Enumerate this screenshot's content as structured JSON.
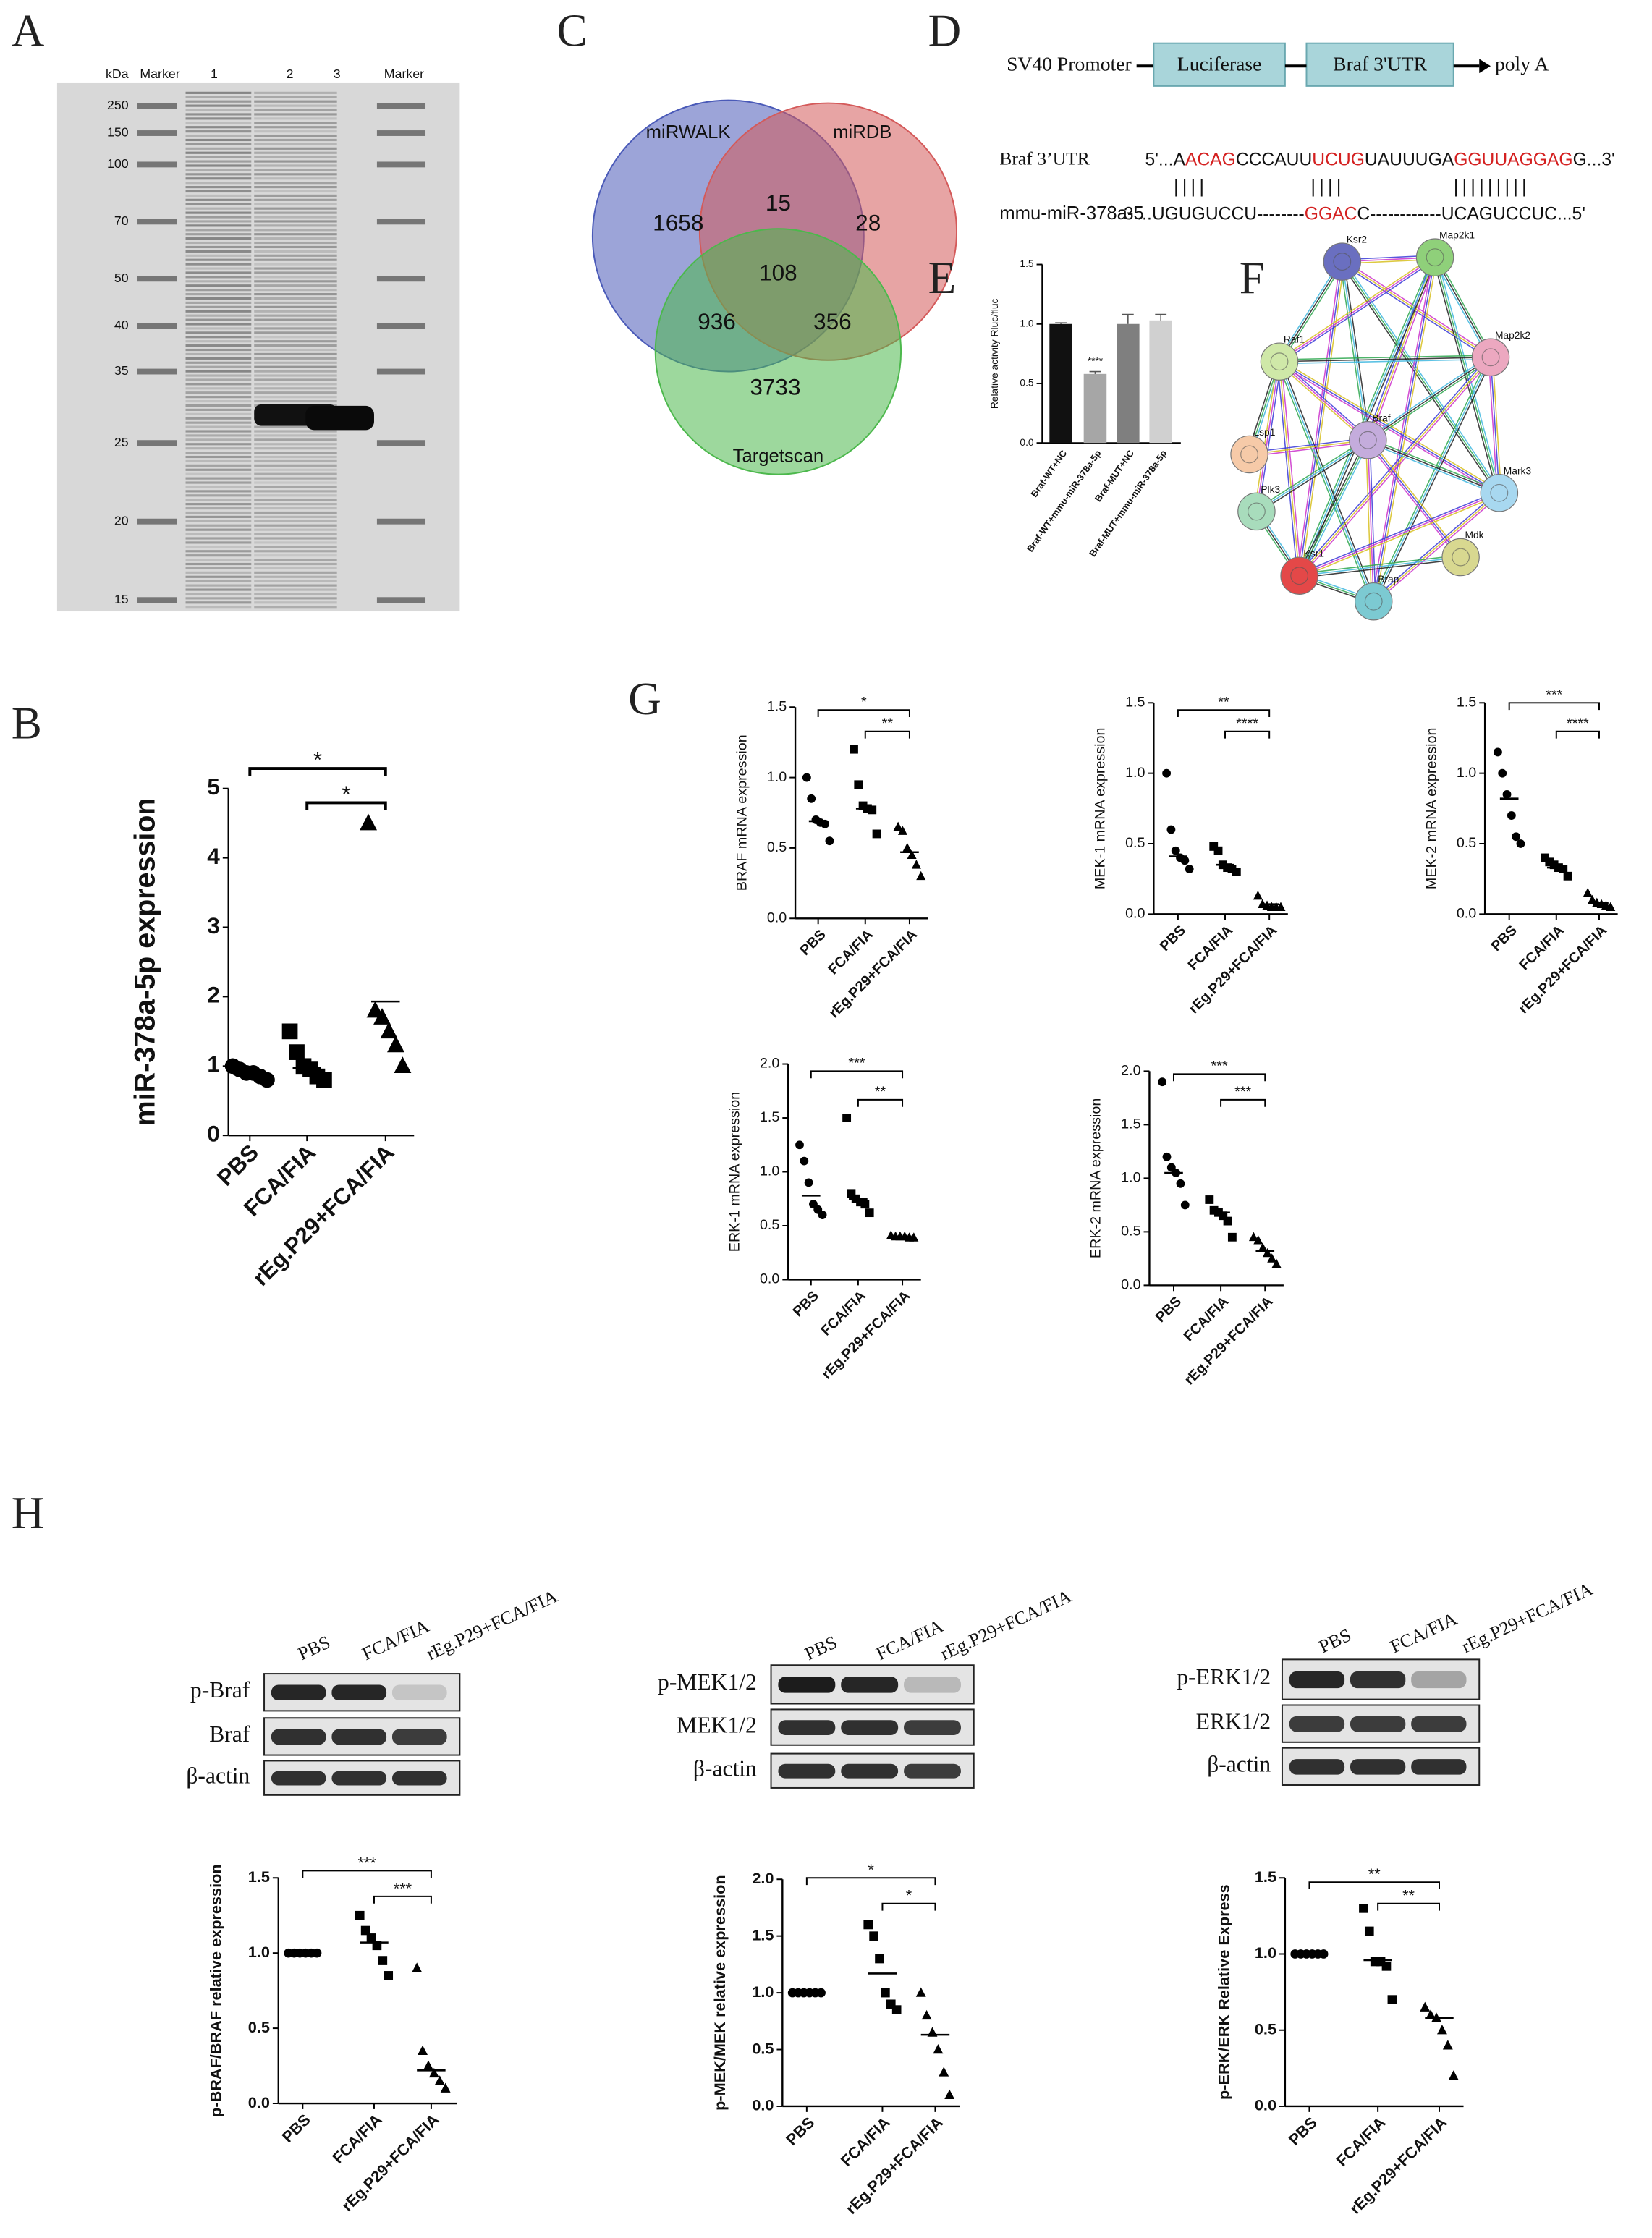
{
  "gel": {
    "label": "A",
    "lane_labels": [
      "kDa",
      "Marker",
      "1",
      "2",
      "3",
      "Marker"
    ],
    "ladder": [
      "250",
      "150",
      "100",
      "70",
      "50",
      "40",
      "35",
      "25",
      "20",
      "15"
    ]
  },
  "construct": {
    "label": "D",
    "promoter": "SV40 Promoter",
    "boxes": [
      "Luciferase",
      "Braf 3'UTR"
    ],
    "end": "poly A",
    "alignment": [
      {
        "name": "Braf 3’UTR",
        "segments": [
          {
            "text": "5'...A"
          },
          {
            "text": "ACAG",
            "highlight": true
          },
          {
            "text": "CCCAUU"
          },
          {
            "text": "UCUG",
            "highlight": true
          },
          {
            "text": "UAUUUGA"
          },
          {
            "text": "GGUUAGGAG",
            "highlight": true
          },
          {
            "text": "G...3'"
          }
        ]
      },
      {
        "name": "mmu-miR-378a-5",
        "segments": [
          {
            "text": "3'...UGUGUCCU--------"
          },
          {
            "text": "GGAC",
            "highlight": true
          },
          {
            "text": "C------------UCAGUCCUC...5'"
          }
        ]
      }
    ],
    "pairing": [
      "||||",
      "||||",
      "|||||||||"
    ]
  },
  "network": {
    "label": "F",
    "nodes": [
      {
        "label": "Ksr2",
        "color": "#6a6fc0"
      },
      {
        "label": "Map2k1",
        "color": "#8fd07a"
      },
      {
        "label": "Raf1",
        "color": "#cfe8a8"
      },
      {
        "label": "Map2k2",
        "color": "#eca8c0"
      },
      {
        "label": "Braf",
        "color": "#c4acdc"
      },
      {
        "label": "Lsp1",
        "color": "#f6caa8"
      },
      {
        "label": "Mark3",
        "color": "#a8d8f0"
      },
      {
        "label": "Plk3",
        "color": "#a8dcbc"
      },
      {
        "label": "Mdk",
        "color": "#d8d890"
      },
      {
        "label": "Ksr1",
        "color": "#e44848"
      },
      {
        "label": "Brap",
        "color": "#7ccad2"
      }
    ],
    "edges": [
      [
        0,
        1
      ],
      [
        0,
        2
      ],
      [
        0,
        3
      ],
      [
        0,
        4
      ],
      [
        0,
        9
      ],
      [
        0,
        6
      ],
      [
        1,
        2
      ],
      [
        1,
        3
      ],
      [
        1,
        4
      ],
      [
        1,
        9
      ],
      [
        1,
        10
      ],
      [
        1,
        6
      ],
      [
        2,
        4
      ],
      [
        2,
        3
      ],
      [
        2,
        9
      ],
      [
        2,
        10
      ],
      [
        2,
        6
      ],
      [
        2,
        5
      ],
      [
        2,
        7
      ],
      [
        3,
        4
      ],
      [
        3,
        9
      ],
      [
        3,
        10
      ],
      [
        3,
        6
      ],
      [
        4,
        9
      ],
      [
        4,
        10
      ],
      [
        4,
        6
      ],
      [
        4,
        5
      ],
      [
        4,
        7
      ],
      [
        4,
        8
      ],
      [
        9,
        10
      ],
      [
        9,
        6
      ],
      [
        9,
        7
      ],
      [
        6,
        10
      ],
      [
        8,
        9
      ]
    ]
  },
  "western": {
    "label": "H",
    "blots": [
      {
        "columns": [
          "PBS",
          "FCA/FIA",
          "rEg.P29+FCA/FIA"
        ],
        "rows": [
          "p-Braf",
          "Braf",
          "β-actin"
        ]
      },
      {
        "columns": [
          "PBS",
          "FCA/FIA",
          "rEg.P29+FCA/FIA"
        ],
        "rows": [
          "p-MEK1/2",
          "MEK1/2",
          "β-actin"
        ]
      },
      {
        "columns": [
          "PBS",
          "FCA/FIA",
          "rEg.P29+FCA/FIA"
        ],
        "rows": [
          "p-ERK1/2",
          "ERK1/2",
          "β-actin"
        ]
      }
    ]
  },
  "chart_data": [
    {
      "type": "dot",
      "label": "B",
      "ylabel": "miR-378a-5p expression",
      "categories": [
        "PBS",
        "FCA/FIA",
        "rEg.P29+FCA/FIA"
      ],
      "markers": [
        "circle",
        "square",
        "triangle"
      ],
      "groups": [
        [
          1.0,
          0.95,
          0.9,
          0.9,
          0.85,
          0.8
        ],
        [
          1.5,
          1.2,
          1.0,
          0.95,
          0.85,
          0.8
        ],
        [
          4.5,
          1.8,
          1.7,
          1.5,
          1.3,
          1.0
        ]
      ],
      "means": [
        0.9,
        0.97,
        1.93
      ],
      "ylim": [
        0,
        5
      ],
      "yticks": [
        0,
        1,
        2,
        3,
        4,
        5
      ],
      "brackets": [
        {
          "from": 0,
          "to": 2,
          "label": "*"
        },
        {
          "from": 1,
          "to": 2,
          "label": "*"
        }
      ]
    },
    {
      "type": "venn",
      "label": "C",
      "sets": [
        {
          "name": "miRWALK",
          "color": "#4a5ab8"
        },
        {
          "name": "miRDB",
          "color": "#d45a5a"
        },
        {
          "name": "Targetscan",
          "color": "#4cb84c"
        }
      ],
      "regions": [
        {
          "in": [
            0
          ],
          "value": 1658
        },
        {
          "in": [
            0,
            1
          ],
          "value": 15
        },
        {
          "in": [
            1
          ],
          "value": 28
        },
        {
          "in": [
            0,
            1,
            2
          ],
          "value": 108
        },
        {
          "in": [
            0,
            2
          ],
          "value": 936
        },
        {
          "in": [
            1,
            2
          ],
          "value": 356
        },
        {
          "in": [
            2
          ],
          "value": 3733
        }
      ]
    },
    {
      "type": "bar",
      "label": "E",
      "ylabel": "Relative activity Rluc/fluc",
      "categories": [
        "Braf-WT+NC",
        "Braf-WT+mmu-miR-378a-5p",
        "Braf-MUT+NC",
        "Braf-MUT+mmu-miR-378a-5p"
      ],
      "values": [
        1.0,
        0.58,
        1.0,
        1.03
      ],
      "errors": [
        0.01,
        0.02,
        0.08,
        0.05
      ],
      "colors": [
        "#111111",
        "#a6a6a6",
        "#7f7f7f",
        "#d0d0d0"
      ],
      "ylim": [
        0,
        1.5
      ],
      "yticks": [
        {
          "value": 0,
          "label": "0.0"
        },
        0.5,
        {
          "value": 1,
          "label": "1.0"
        },
        1.5
      ],
      "annotations": [
        {
          "index": 1,
          "label": "****"
        }
      ]
    },
    {
      "type": "dot",
      "label": "G",
      "ylabel": "BRAF mRNA expression",
      "categories": [
        "PBS",
        "FCA/FIA",
        "rEg.P29+FCA/FIA"
      ],
      "markers": [
        "circle",
        "square",
        "triangle"
      ],
      "groups": [
        [
          1.0,
          0.85,
          0.7,
          0.68,
          0.67,
          0.55
        ],
        [
          1.2,
          0.95,
          0.8,
          0.78,
          0.77,
          0.6
        ],
        [
          0.65,
          0.62,
          0.5,
          0.45,
          0.38,
          0.3
        ]
      ],
      "means": [
        0.69,
        0.78,
        0.47
      ],
      "ylim": [
        0,
        1.5
      ],
      "yticks": [
        {
          "value": 0,
          "label": "0.0"
        },
        0.5,
        {
          "value": 1,
          "label": "1.0"
        },
        1.5
      ],
      "brackets": [
        {
          "from": 0,
          "to": 2,
          "label": "*"
        },
        {
          "from": 1,
          "to": 2,
          "label": "**"
        }
      ]
    },
    {
      "type": "dot",
      "ylabel": "MEK-1 mRNA expression",
      "categories": [
        "PBS",
        "FCA/FIA",
        "rEg.P29+FCA/FIA"
      ],
      "markers": [
        "circle",
        "square",
        "triangle"
      ],
      "groups": [
        [
          1.0,
          0.6,
          0.45,
          0.4,
          0.38,
          0.32
        ],
        [
          0.48,
          0.45,
          0.35,
          0.33,
          0.32,
          0.3
        ],
        [
          0.13,
          0.07,
          0.06,
          0.05,
          0.05,
          0.05
        ]
      ],
      "means": [
        0.41,
        0.35,
        0.07
      ],
      "ylim": [
        0,
        1.5
      ],
      "yticks": [
        {
          "value": 0,
          "label": "0.0"
        },
        0.5,
        {
          "value": 1,
          "label": "1.0"
        },
        1.5
      ],
      "brackets": [
        {
          "from": 0,
          "to": 2,
          "label": "**"
        },
        {
          "from": 1,
          "to": 2,
          "label": "****"
        }
      ]
    },
    {
      "type": "dot",
      "ylabel": "MEK-2 mRNA expression",
      "categories": [
        "PBS",
        "FCA/FIA",
        "rEg.P29+FCA/FIA"
      ],
      "markers": [
        "circle",
        "square",
        "triangle"
      ],
      "groups": [
        [
          1.15,
          1.0,
          0.85,
          0.7,
          0.55,
          0.5
        ],
        [
          0.4,
          0.37,
          0.35,
          0.33,
          0.32,
          0.27
        ],
        [
          0.15,
          0.1,
          0.08,
          0.07,
          0.06,
          0.05
        ]
      ],
      "means": [
        0.82,
        0.33,
        0.08
      ],
      "ylim": [
        0,
        1.5
      ],
      "yticks": [
        {
          "value": 0,
          "label": "0.0"
        },
        0.5,
        {
          "value": 1,
          "label": "1.0"
        },
        1.5
      ],
      "brackets": [
        {
          "from": 0,
          "to": 2,
          "label": "***"
        },
        {
          "from": 1,
          "to": 2,
          "label": "****"
        }
      ]
    },
    {
      "type": "dot",
      "ylabel": "ERK-1 mRNA expression",
      "categories": [
        "PBS",
        "FCA/FIA",
        "rEg.P29+FCA/FIA"
      ],
      "markers": [
        "circle",
        "square",
        "triangle"
      ],
      "groups": [
        [
          1.25,
          1.1,
          0.9,
          0.7,
          0.65,
          0.6
        ],
        [
          1.5,
          0.8,
          0.75,
          0.72,
          0.7,
          0.62
        ],
        [
          0.41,
          0.4,
          0.4,
          0.4,
          0.39,
          0.39
        ]
      ],
      "means": [
        0.78,
        0.75,
        0.4
      ],
      "ylim": [
        0,
        2
      ],
      "yticks": [
        {
          "value": 0,
          "label": "0.0"
        },
        0.5,
        {
          "value": 1,
          "label": "1.0"
        },
        1.5,
        {
          "value": 2,
          "label": "2.0"
        }
      ],
      "brackets": [
        {
          "from": 0,
          "to": 2,
          "label": "***"
        },
        {
          "from": 1,
          "to": 2,
          "label": "**"
        }
      ]
    },
    {
      "type": "dot",
      "ylabel": "ERK-2 mRNA expression",
      "categories": [
        "PBS",
        "FCA/FIA",
        "rEg.P29+FCA/FIA"
      ],
      "markers": [
        "circle",
        "square",
        "triangle"
      ],
      "groups": [
        [
          1.9,
          1.2,
          1.1,
          1.05,
          0.95,
          0.75
        ],
        [
          0.8,
          0.7,
          0.68,
          0.65,
          0.6,
          0.45
        ],
        [
          0.45,
          0.42,
          0.35,
          0.3,
          0.25,
          0.2
        ]
      ],
      "means": [
        1.05,
        0.68,
        0.32
      ],
      "ylim": [
        0,
        2
      ],
      "yticks": [
        {
          "value": 0,
          "label": "0.0"
        },
        0.5,
        {
          "value": 1,
          "label": "1.0"
        },
        1.5,
        {
          "value": 2,
          "label": "2.0"
        }
      ],
      "brackets": [
        {
          "from": 0,
          "to": 2,
          "label": "***"
        },
        {
          "from": 1,
          "to": 2,
          "label": "***"
        }
      ]
    },
    {
      "type": "dot",
      "ylabel": "p-BRAF/BRAF relative expression",
      "categories": [
        "PBS",
        "FCA/FIA",
        "rEg.P29+FCA/FIA"
      ],
      "markers": [
        "circle",
        "square",
        "triangle"
      ],
      "groups": [
        [
          1.0,
          1.0,
          1.0,
          1.0,
          1.0,
          1.0
        ],
        [
          1.25,
          1.15,
          1.1,
          1.05,
          0.95,
          0.85
        ],
        [
          0.9,
          0.35,
          0.25,
          0.2,
          0.15,
          0.1
        ]
      ],
      "means": [
        1.0,
        1.07,
        0.22
      ],
      "ylim": [
        0,
        1.5
      ],
      "yticks": [
        {
          "value": 0,
          "label": "0.0"
        },
        0.5,
        {
          "value": 1,
          "label": "1.0"
        },
        1.5
      ],
      "brackets": [
        {
          "from": 0,
          "to": 2,
          "label": "***"
        },
        {
          "from": 1,
          "to": 2,
          "label": "***"
        }
      ]
    },
    {
      "type": "dot",
      "ylabel": "p-MEK/MEK relative expression",
      "categories": [
        "PBS",
        "FCA/FIA",
        "rEg.P29+FCA/FIA"
      ],
      "markers": [
        "circle",
        "square",
        "triangle"
      ],
      "groups": [
        [
          1.0,
          1.0,
          1.0,
          1.0,
          1.0,
          1.0
        ],
        [
          1.6,
          1.5,
          1.3,
          1.0,
          0.9,
          0.85
        ],
        [
          1.0,
          0.8,
          0.65,
          0.5,
          0.3,
          0.1
        ]
      ],
      "means": [
        1.0,
        1.17,
        0.63
      ],
      "ylim": [
        0,
        2
      ],
      "yticks": [
        {
          "value": 0,
          "label": "0.0"
        },
        0.5,
        {
          "value": 1,
          "label": "1.0"
        },
        1.5,
        {
          "value": 2,
          "label": "2.0"
        }
      ],
      "brackets": [
        {
          "from": 0,
          "to": 2,
          "label": "*"
        },
        {
          "from": 1,
          "to": 2,
          "label": "*"
        }
      ]
    },
    {
      "type": "dot",
      "ylabel": "p-ERK/ERK Relative Express",
      "categories": [
        "PBS",
        "FCA/FIA",
        "rEg.P29+FCA/FIA"
      ],
      "markers": [
        "circle",
        "square",
        "triangle"
      ],
      "groups": [
        [
          1.0,
          1.0,
          1.0,
          1.0,
          1.0,
          1.0
        ],
        [
          1.3,
          1.15,
          0.95,
          0.95,
          0.92,
          0.7
        ],
        [
          0.65,
          0.6,
          0.58,
          0.5,
          0.4,
          0.2
        ]
      ],
      "means": [
        1.0,
        0.96,
        0.58
      ],
      "ylim": [
        0,
        1.5
      ],
      "yticks": [
        {
          "value": 0,
          "label": "0.0"
        },
        0.5,
        {
          "value": 1,
          "label": "1.0"
        },
        1.5
      ],
      "brackets": [
        {
          "from": 0,
          "to": 2,
          "label": "**"
        },
        {
          "from": 1,
          "to": 2,
          "label": "**"
        }
      ]
    }
  ]
}
